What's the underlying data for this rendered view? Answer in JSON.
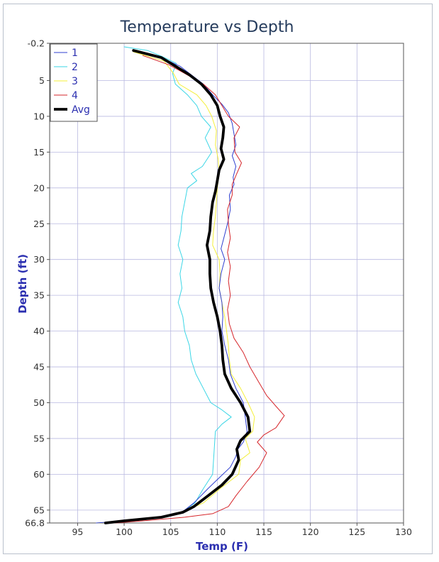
{
  "chart_data": {
    "type": "line",
    "title": "Temperature vs Depth",
    "xlabel": "Temp (F)",
    "ylabel": "Depth (ft)",
    "xlim": [
      92,
      130
    ],
    "ylim": [
      -0.2,
      66.8
    ],
    "y_inverted": true,
    "grid": true,
    "legend_position": "top-left",
    "x_ticks": [
      95,
      100,
      105,
      110,
      115,
      120,
      125,
      130
    ],
    "x_tick_labels": [
      "95",
      "100",
      "105",
      "110",
      "115",
      "120",
      "125",
      "130"
    ],
    "y_ticks": [
      -0.2,
      5,
      10,
      15,
      20,
      25,
      30,
      35,
      40,
      45,
      50,
      55,
      60,
      65,
      66.8
    ],
    "y_tick_labels": [
      "-0.2",
      "5",
      "10",
      "15",
      "20",
      "25",
      "30",
      "35",
      "40",
      "45",
      "50",
      "55",
      "60",
      "65",
      "66.8"
    ],
    "series": [
      {
        "name": "1",
        "color": "#2f3fd0",
        "width": 1,
        "points": [
          [
            102,
            1.2
          ],
          [
            104,
            1.8
          ],
          [
            106,
            3
          ],
          [
            107,
            4
          ],
          [
            108.5,
            5.5
          ],
          [
            109.5,
            7
          ],
          [
            110.5,
            8.3
          ],
          [
            111.2,
            9.5
          ],
          [
            111.6,
            11
          ],
          [
            111.8,
            12.5
          ],
          [
            112,
            14
          ],
          [
            111.6,
            15.5
          ],
          [
            112,
            17
          ],
          [
            111.7,
            18.5
          ],
          [
            111.8,
            19.5
          ],
          [
            111.3,
            21
          ],
          [
            111.4,
            23
          ],
          [
            111.1,
            25
          ],
          [
            110.7,
            27
          ],
          [
            110.4,
            28.5
          ],
          [
            110.8,
            30
          ],
          [
            110.4,
            32
          ],
          [
            110.2,
            34
          ],
          [
            110.5,
            36
          ],
          [
            110.6,
            38
          ],
          [
            110.5,
            40
          ],
          [
            110.8,
            42
          ],
          [
            111.2,
            44
          ],
          [
            111.4,
            46
          ],
          [
            112,
            48
          ],
          [
            112.8,
            50
          ],
          [
            113,
            52
          ],
          [
            113.2,
            54
          ],
          [
            112.8,
            55.5
          ],
          [
            112.2,
            56.5
          ],
          [
            112,
            57.5
          ],
          [
            111.4,
            59
          ],
          [
            110.2,
            60.5
          ],
          [
            109,
            62
          ],
          [
            107.5,
            64
          ],
          [
            106.3,
            65.2
          ],
          [
            104,
            66
          ],
          [
            100,
            66.5
          ],
          [
            97,
            66.8
          ]
        ]
      },
      {
        "name": "2",
        "color": "#3bd6e6",
        "width": 1,
        "points": [
          [
            100,
            0.3
          ],
          [
            102.5,
            0.8
          ],
          [
            104,
            1.6
          ],
          [
            105.6,
            2.6
          ],
          [
            105.2,
            4
          ],
          [
            105.5,
            5.5
          ],
          [
            106.8,
            7
          ],
          [
            107.8,
            8.5
          ],
          [
            108.3,
            10
          ],
          [
            109.3,
            11.5
          ],
          [
            108.7,
            13
          ],
          [
            109.4,
            15
          ],
          [
            108.4,
            17
          ],
          [
            107.2,
            18
          ],
          [
            107.8,
            19
          ],
          [
            106.8,
            20
          ],
          [
            106.5,
            22
          ],
          [
            106.2,
            24
          ],
          [
            106.1,
            26
          ],
          [
            105.8,
            28
          ],
          [
            106.3,
            30
          ],
          [
            106,
            32
          ],
          [
            106.2,
            34
          ],
          [
            105.8,
            36
          ],
          [
            106.3,
            38
          ],
          [
            106.5,
            40
          ],
          [
            107,
            42
          ],
          [
            107.2,
            44
          ],
          [
            107.7,
            46
          ],
          [
            108.5,
            48
          ],
          [
            109.3,
            50
          ],
          [
            110.5,
            51
          ],
          [
            111.5,
            52
          ],
          [
            110.5,
            53
          ],
          [
            109.8,
            54
          ],
          [
            109.7,
            56
          ],
          [
            109.6,
            58
          ],
          [
            109.5,
            60
          ],
          [
            108.5,
            62
          ],
          [
            107.6,
            64
          ],
          [
            106.3,
            65.2
          ],
          [
            104.5,
            66
          ],
          [
            101,
            66.5
          ],
          [
            98,
            66.8
          ]
        ]
      },
      {
        "name": "3",
        "color": "#f4ef3a",
        "width": 1,
        "points": [
          [
            101,
            1
          ],
          [
            104.3,
            2.3
          ],
          [
            105.3,
            4
          ],
          [
            105.9,
            5.5
          ],
          [
            107.8,
            7
          ],
          [
            108.8,
            8.5
          ],
          [
            109.4,
            10
          ],
          [
            109.9,
            12
          ],
          [
            109.8,
            14
          ],
          [
            110.1,
            16
          ],
          [
            110.2,
            18
          ],
          [
            110,
            20
          ],
          [
            109.9,
            22
          ],
          [
            109.8,
            24
          ],
          [
            109.6,
            26
          ],
          [
            109.5,
            28
          ],
          [
            110.2,
            30
          ],
          [
            110.3,
            32
          ],
          [
            110.2,
            34
          ],
          [
            110.5,
            36
          ],
          [
            110.8,
            38
          ],
          [
            111,
            40
          ],
          [
            111.2,
            42
          ],
          [
            111.3,
            44
          ],
          [
            111.5,
            46
          ],
          [
            112.5,
            48
          ],
          [
            113.3,
            50
          ],
          [
            114,
            52
          ],
          [
            113.8,
            54
          ],
          [
            113,
            55
          ],
          [
            113.5,
            57
          ],
          [
            112.5,
            58
          ],
          [
            112.3,
            60
          ],
          [
            110.3,
            62
          ],
          [
            108.5,
            64
          ],
          [
            106.8,
            65
          ],
          [
            104.5,
            66
          ],
          [
            100,
            66.6
          ],
          [
            97,
            66.8
          ]
        ]
      },
      {
        "name": "4",
        "color": "#d6262b",
        "width": 1,
        "points": [
          [
            102,
            1.5
          ],
          [
            104.8,
            2.8
          ],
          [
            106.5,
            4
          ],
          [
            108.5,
            5.5
          ],
          [
            109.8,
            7
          ],
          [
            110.5,
            8.5
          ],
          [
            111.2,
            10
          ],
          [
            112.4,
            11.5
          ],
          [
            111.8,
            13
          ],
          [
            111.9,
            15
          ],
          [
            112.6,
            16.5
          ],
          [
            112.1,
            18
          ],
          [
            111.6,
            19.5
          ],
          [
            111.6,
            21
          ],
          [
            111.1,
            23
          ],
          [
            111.2,
            25
          ],
          [
            111.4,
            27
          ],
          [
            111.1,
            29
          ],
          [
            111.4,
            31
          ],
          [
            111.2,
            33
          ],
          [
            111.4,
            35
          ],
          [
            111.1,
            37
          ],
          [
            111.3,
            39
          ],
          [
            111.8,
            41
          ],
          [
            112.8,
            43
          ],
          [
            113.5,
            45
          ],
          [
            114.4,
            47
          ],
          [
            115.3,
            49
          ],
          [
            116.3,
            50.5
          ],
          [
            117.2,
            51.8
          ],
          [
            116.3,
            53.5
          ],
          [
            115,
            54.5
          ],
          [
            114.3,
            55.5
          ],
          [
            115.3,
            57
          ],
          [
            114.5,
            59
          ],
          [
            113.2,
            61
          ],
          [
            112,
            63
          ],
          [
            111.2,
            64.5
          ],
          [
            109.5,
            65.5
          ],
          [
            106.5,
            66
          ],
          [
            102,
            66.5
          ],
          [
            99,
            66.8
          ]
        ]
      },
      {
        "name": "Avg",
        "color": "#000000",
        "width": 3.8,
        "points": [
          [
            101,
            0.8
          ],
          [
            104,
            1.8
          ],
          [
            105.5,
            3
          ],
          [
            107,
            4.2
          ],
          [
            108.3,
            5.5
          ],
          [
            109.3,
            7
          ],
          [
            110,
            8.5
          ],
          [
            110.3,
            10
          ],
          [
            110.7,
            11.5
          ],
          [
            110.6,
            13
          ],
          [
            110.4,
            14.5
          ],
          [
            110.7,
            16
          ],
          [
            110.2,
            17.5
          ],
          [
            110,
            19
          ],
          [
            109.8,
            20.5
          ],
          [
            109.5,
            22
          ],
          [
            109.3,
            24
          ],
          [
            109.2,
            26
          ],
          [
            108.9,
            28
          ],
          [
            109.2,
            30
          ],
          [
            109.2,
            32
          ],
          [
            109.3,
            34
          ],
          [
            109.6,
            36
          ],
          [
            110,
            38
          ],
          [
            110.3,
            40
          ],
          [
            110.5,
            42
          ],
          [
            110.6,
            44
          ],
          [
            110.8,
            46
          ],
          [
            111.5,
            48
          ],
          [
            112.5,
            50
          ],
          [
            113.3,
            52
          ],
          [
            113.5,
            54
          ],
          [
            112.5,
            55.3
          ],
          [
            112.1,
            56.5
          ],
          [
            112.3,
            58
          ],
          [
            111.6,
            60
          ],
          [
            110.5,
            61.5
          ],
          [
            109,
            63
          ],
          [
            107.5,
            64.5
          ],
          [
            106.3,
            65.3
          ],
          [
            104,
            66
          ],
          [
            100,
            66.5
          ],
          [
            98,
            66.8
          ]
        ]
      }
    ]
  }
}
